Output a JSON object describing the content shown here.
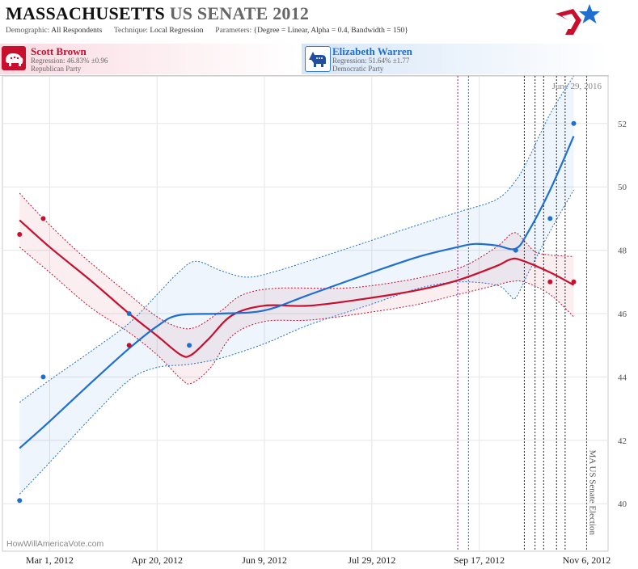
{
  "header": {
    "title_main": "MASSACHUSETTS",
    "title_sub": "US SENATE 2012",
    "demographic_label": "Demographic:",
    "demographic_value": "All Respondents",
    "technique_label": "Technique:",
    "technique_value": "Local Regression",
    "parameters_label": "Parameters:",
    "parameters_value": "{Degree = Linear, Alpha = 0.4, Bandwidth = 150}"
  },
  "candidates": [
    {
      "name": "Scott Brown",
      "regression": "Regression: 46.83% ±0.96",
      "party": "Republican Party",
      "color": "#c8102e",
      "icon": "elephant-icon"
    },
    {
      "name": "Elizabeth Warren",
      "regression": "Regression: 51.64% ±1.77",
      "party": "Democratic Party",
      "color": "#1f6fd1",
      "icon": "donkey-icon"
    }
  ],
  "chart_data": {
    "type": "line",
    "date_annotation": "June 29, 2016",
    "event_annotation": "MA US Senate Election",
    "credit": "HowWillAmericaVote.com",
    "x_ticks": [
      "Mar 1, 2012",
      "Apr 20, 2012",
      "Jun 9, 2012",
      "Jul 29, 2012",
      "Sep 17, 2012",
      "Nov 6, 2012"
    ],
    "x_range": [
      "2012-02-08",
      "2012-11-16"
    ],
    "ylim": [
      38.5,
      53.5
    ],
    "y_ticks": [
      40,
      42,
      44,
      46,
      48,
      50,
      52
    ],
    "grid": true,
    "vertical_markers": [
      {
        "date": "2012-09-07",
        "color": "#8a1f8a"
      },
      {
        "date": "2012-09-12",
        "color": "#1f6fd1"
      },
      {
        "date": "2012-10-08",
        "color": "#222222"
      },
      {
        "date": "2012-10-13",
        "color": "#222222"
      },
      {
        "date": "2012-10-17",
        "color": "#222222"
      },
      {
        "date": "2012-10-23",
        "color": "#222222"
      },
      {
        "date": "2012-10-27",
        "color": "#222222"
      },
      {
        "date": "2012-11-06",
        "color": "#444444"
      }
    ],
    "series": [
      {
        "name": "Scott Brown",
        "color": "#c8102e",
        "points": [
          [
            "2012-02-16",
            48.5
          ],
          [
            "2012-02-27",
            49.0
          ],
          [
            "2012-04-07",
            45.0
          ],
          [
            "2012-10-20",
            47.0
          ],
          [
            "2012-10-31",
            47.0
          ]
        ],
        "fit": [
          [
            "2012-02-16",
            48.95
          ],
          [
            "2012-03-01",
            48.1
          ],
          [
            "2012-03-20",
            47.05
          ],
          [
            "2012-04-07",
            46.0
          ],
          [
            "2012-04-20",
            45.3
          ],
          [
            "2012-05-01",
            44.7
          ],
          [
            "2012-05-06",
            44.7
          ],
          [
            "2012-05-14",
            45.2
          ],
          [
            "2012-05-25",
            45.95
          ],
          [
            "2012-06-09",
            46.25
          ],
          [
            "2012-06-30",
            46.25
          ],
          [
            "2012-07-29",
            46.5
          ],
          [
            "2012-08-20",
            46.75
          ],
          [
            "2012-09-07",
            47.05
          ],
          [
            "2012-09-25",
            47.5
          ],
          [
            "2012-10-01",
            47.7
          ],
          [
            "2012-10-06",
            47.7
          ],
          [
            "2012-10-20",
            47.3
          ],
          [
            "2012-10-31",
            46.9
          ]
        ],
        "band_upper": [
          [
            "2012-02-16",
            49.8
          ],
          [
            "2012-02-27",
            49.0
          ],
          [
            "2012-03-15",
            47.9
          ],
          [
            "2012-04-07",
            46.6
          ],
          [
            "2012-04-20",
            45.9
          ],
          [
            "2012-05-01",
            45.55
          ],
          [
            "2012-05-09",
            45.6
          ],
          [
            "2012-05-20",
            46.1
          ],
          [
            "2012-05-30",
            46.6
          ],
          [
            "2012-06-15",
            46.8
          ],
          [
            "2012-07-15",
            46.8
          ],
          [
            "2012-08-05",
            46.95
          ],
          [
            "2012-08-25",
            47.2
          ],
          [
            "2012-09-10",
            47.5
          ],
          [
            "2012-09-25",
            48.1
          ],
          [
            "2012-10-03",
            48.55
          ],
          [
            "2012-10-08",
            48.3
          ],
          [
            "2012-10-13",
            47.95
          ],
          [
            "2012-10-20",
            47.85
          ],
          [
            "2012-10-31",
            47.8
          ]
        ],
        "band_lower": [
          [
            "2012-02-16",
            48.1
          ],
          [
            "2012-03-01",
            47.3
          ],
          [
            "2012-03-20",
            46.2
          ],
          [
            "2012-04-07",
            45.4
          ],
          [
            "2012-04-20",
            44.7
          ],
          [
            "2012-05-01",
            43.95
          ],
          [
            "2012-05-06",
            43.8
          ],
          [
            "2012-05-15",
            44.3
          ],
          [
            "2012-05-25",
            45.3
          ],
          [
            "2012-06-09",
            45.75
          ],
          [
            "2012-07-01",
            45.8
          ],
          [
            "2012-07-29",
            46.05
          ],
          [
            "2012-08-20",
            46.3
          ],
          [
            "2012-09-07",
            46.6
          ],
          [
            "2012-09-25",
            46.9
          ],
          [
            "2012-10-01",
            47.0
          ],
          [
            "2012-10-08",
            47.0
          ],
          [
            "2012-10-20",
            46.6
          ],
          [
            "2012-10-31",
            45.9
          ]
        ]
      },
      {
        "name": "Elizabeth Warren",
        "color": "#1f6fd1",
        "points": [
          [
            "2012-02-16",
            40.1
          ],
          [
            "2012-02-27",
            44.0
          ],
          [
            "2012-04-07",
            46.0
          ],
          [
            "2012-05-05",
            45.0
          ],
          [
            "2012-10-04",
            48.0
          ],
          [
            "2012-10-20",
            49.0
          ],
          [
            "2012-10-31",
            52.0
          ]
        ],
        "fit": [
          [
            "2012-02-16",
            41.75
          ],
          [
            "2012-03-01",
            42.6
          ],
          [
            "2012-03-20",
            43.8
          ],
          [
            "2012-04-07",
            44.9
          ],
          [
            "2012-04-20",
            45.6
          ],
          [
            "2012-04-30",
            45.95
          ],
          [
            "2012-05-20",
            46.0
          ],
          [
            "2012-06-09",
            46.1
          ],
          [
            "2012-06-30",
            46.6
          ],
          [
            "2012-07-29",
            47.3
          ],
          [
            "2012-08-20",
            47.8
          ],
          [
            "2012-09-07",
            48.1
          ],
          [
            "2012-09-15",
            48.2
          ],
          [
            "2012-09-25",
            48.15
          ],
          [
            "2012-10-04",
            48.05
          ],
          [
            "2012-10-10",
            48.6
          ],
          [
            "2012-10-20",
            49.9
          ],
          [
            "2012-10-31",
            51.6
          ]
        ],
        "band_upper": [
          [
            "2012-02-16",
            43.2
          ],
          [
            "2012-03-01",
            43.9
          ],
          [
            "2012-03-20",
            44.8
          ],
          [
            "2012-04-07",
            45.7
          ],
          [
            "2012-04-20",
            46.6
          ],
          [
            "2012-04-30",
            47.3
          ],
          [
            "2012-05-08",
            47.65
          ],
          [
            "2012-05-20",
            47.35
          ],
          [
            "2012-06-01",
            47.15
          ],
          [
            "2012-06-15",
            47.35
          ],
          [
            "2012-07-15",
            48.0
          ],
          [
            "2012-08-15",
            48.7
          ],
          [
            "2012-09-07",
            49.2
          ],
          [
            "2012-09-25",
            49.6
          ],
          [
            "2012-10-04",
            50.2
          ],
          [
            "2012-10-10",
            50.9
          ],
          [
            "2012-10-20",
            52.3
          ],
          [
            "2012-10-31",
            53.5
          ]
        ],
        "band_lower": [
          [
            "2012-02-16",
            40.3
          ],
          [
            "2012-03-01",
            41.3
          ],
          [
            "2012-03-20",
            42.7
          ],
          [
            "2012-04-07",
            43.9
          ],
          [
            "2012-04-20",
            44.3
          ],
          [
            "2012-05-05",
            44.4
          ],
          [
            "2012-05-20",
            44.6
          ],
          [
            "2012-06-09",
            45.05
          ],
          [
            "2012-06-30",
            45.65
          ],
          [
            "2012-07-29",
            46.3
          ],
          [
            "2012-08-20",
            46.8
          ],
          [
            "2012-09-07",
            47.0
          ],
          [
            "2012-09-25",
            46.9
          ],
          [
            "2012-10-01",
            46.6
          ],
          [
            "2012-10-04",
            46.5
          ],
          [
            "2012-10-10",
            47.3
          ],
          [
            "2012-10-20",
            48.6
          ],
          [
            "2012-10-31",
            49.9
          ]
        ]
      }
    ]
  }
}
